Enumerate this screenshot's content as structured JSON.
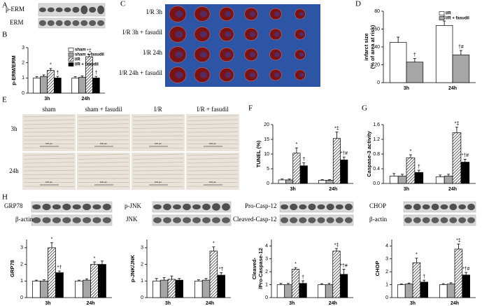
{
  "panel_labels": [
    "A",
    "B",
    "C",
    "D",
    "E",
    "F",
    "G",
    "H"
  ],
  "blot_A": [
    "p-ERM",
    "ERM"
  ],
  "panel_C": [
    "I/R 3h",
    "I/R 3h + fasudil",
    "I/R 24h",
    "I/R 24h + fasudil"
  ],
  "panel_E": {
    "columns": [
      "sham",
      "sham + fasudil",
      "I/R",
      "I/R + fasudil"
    ],
    "rows": [
      "3h",
      "24h"
    ],
    "scale_bar": "100 μm"
  },
  "blot_H": [
    [
      "GRP78",
      "β-actin"
    ],
    [
      "p-JNK",
      "JNK"
    ],
    [
      "Pro-Casp-12",
      "Cleaved-Casp-12"
    ],
    [
      "CHOP",
      "β-actin"
    ]
  ],
  "chart_data": [
    {
      "type": "bar",
      "ylabel": [
        "p-ERM/ERM"
      ],
      "categories": [
        "3h",
        "24h"
      ],
      "ylim": [
        0,
        3
      ],
      "yticks": [
        0,
        1,
        2,
        3
      ],
      "legend": "upper right",
      "series": [
        {
          "name": "sham",
          "color": "#ffffff",
          "values": [
            1,
            1
          ],
          "errors": [
            0.08,
            0.08
          ],
          "significance": [
            null,
            null
          ]
        },
        {
          "name": "sham + fasudil",
          "color": "#a6a6a6",
          "values": [
            1.1,
            1.05
          ],
          "errors": [
            0.1,
            0.08
          ],
          "significance": [
            null,
            null
          ]
        },
        {
          "name": "I/R",
          "color": "#ffffff",
          "pattern": "hatch",
          "values": [
            1.5,
            2.4
          ],
          "errors": [
            0.12,
            0.15
          ],
          "significance": [
            "*",
            "*‡"
          ]
        },
        {
          "name": "I/R + fasudil",
          "color": "#000000",
          "values": [
            1,
            1
          ],
          "errors": [
            0.1,
            0.1
          ],
          "significance": [
            "†",
            "†"
          ]
        }
      ]
    },
    {
      "type": "bar",
      "ylabel": [
        "infarct size",
        "(% of area at risk)"
      ],
      "categories": [
        "3h",
        "24h"
      ],
      "ylim": [
        0,
        80
      ],
      "yticks": [
        0,
        20,
        40,
        60,
        80
      ],
      "legend": "upper right",
      "series": [
        {
          "name": "I/R",
          "color": "#ffffff",
          "values": [
            45,
            64
          ],
          "errors": [
            6,
            5
          ],
          "significance": [
            null,
            "‡"
          ]
        },
        {
          "name": "I/R + fasudil",
          "color": "#a6a6a6",
          "values": [
            23,
            31
          ],
          "errors": [
            4,
            5
          ],
          "significance": [
            "†",
            "†#"
          ]
        }
      ]
    },
    {
      "type": "bar",
      "ylabel": [
        "TUNEL (%)"
      ],
      "categories": [
        "3h",
        "24h"
      ],
      "ylim": [
        0,
        20
      ],
      "yticks": [
        0,
        5,
        10,
        15,
        20
      ],
      "series": [
        {
          "color": "#ffffff",
          "values": [
            1.2,
            1.1
          ],
          "errors": [
            0.3,
            0.2
          ],
          "significance": [
            null,
            null
          ]
        },
        {
          "color": "#a6a6a6",
          "values": [
            1.2,
            1.1
          ],
          "errors": [
            0.3,
            0.2
          ],
          "significance": [
            null,
            null
          ]
        },
        {
          "color": "#ffffff",
          "pattern": "hatch",
          "values": [
            10.3,
            15.3
          ],
          "errors": [
            1.8,
            2.2
          ],
          "significance": [
            "*",
            "*‡"
          ]
        },
        {
          "color": "#000000",
          "values": [
            6,
            8
          ],
          "errors": [
            1,
            1
          ],
          "significance": [
            "†",
            "*†#"
          ]
        }
      ]
    },
    {
      "type": "bar",
      "ylabel": [
        "Caspase-3 activity"
      ],
      "categories": [
        "3h",
        "24h"
      ],
      "ylim": [
        0,
        1.6
      ],
      "yticks": [
        {
          "value": 0,
          "label": "0.0"
        },
        0.4,
        0.8,
        1.2,
        1.6
      ],
      "series": [
        {
          "color": "#ffffff",
          "values": [
            0.2,
            0.18
          ],
          "errors": [
            0.07,
            0.05
          ],
          "significance": [
            null,
            null
          ]
        },
        {
          "color": "#a6a6a6",
          "values": [
            0.2,
            0.2
          ],
          "errors": [
            0.05,
            0.05
          ],
          "significance": [
            null,
            null
          ]
        },
        {
          "color": "#ffffff",
          "pattern": "hatch",
          "values": [
            0.7,
            1.38
          ],
          "errors": [
            0.08,
            0.15
          ],
          "significance": [
            "*",
            "*‡"
          ]
        },
        {
          "color": "#000000",
          "values": [
            0.3,
            0.58
          ],
          "errors": [
            0.06,
            0.08
          ],
          "significance": [
            "†",
            "*†#"
          ]
        }
      ]
    },
    {
      "type": "bar",
      "ylabel": [
        "GRP78"
      ],
      "categories": [
        "3h",
        "24h"
      ],
      "ylim": [
        0,
        3.5
      ],
      "yticks": [
        0,
        1,
        2,
        3
      ],
      "series": [
        {
          "color": "#ffffff",
          "values": [
            1,
            1
          ],
          "errors": [
            0.05,
            0.05
          ],
          "significance": [
            null,
            null
          ]
        },
        {
          "color": "#a6a6a6",
          "values": [
            1,
            1.05
          ],
          "errors": [
            0.07,
            0.08
          ],
          "significance": [
            null,
            null
          ]
        },
        {
          "color": "#ffffff",
          "pattern": "hatch",
          "values": [
            3,
            2
          ],
          "errors": [
            0.3,
            0.15
          ],
          "significance": [
            "*",
            "*"
          ]
        },
        {
          "color": "#000000",
          "values": [
            1.5,
            2
          ],
          "errors": [
            0.1,
            0.2
          ],
          "significance": [
            "*†",
            null
          ]
        }
      ]
    },
    {
      "type": "bar",
      "ylabel": [
        "p-JNK/JNK"
      ],
      "categories": [
        "3h",
        "24h"
      ],
      "ylim": [
        0,
        3.5
      ],
      "yticks": [
        0,
        1,
        2,
        3
      ],
      "series": [
        {
          "color": "#ffffff",
          "values": [
            1,
            1
          ],
          "errors": [
            0.15,
            0.07
          ],
          "significance": [
            null,
            null
          ]
        },
        {
          "color": "#a6a6a6",
          "values": [
            1.05,
            1.05
          ],
          "errors": [
            0.15,
            0.1
          ],
          "significance": [
            null,
            null
          ]
        },
        {
          "color": "#ffffff",
          "pattern": "hatch",
          "values": [
            1.1,
            2.8
          ],
          "errors": [
            0.2,
            0.25
          ],
          "significance": [
            null,
            "*"
          ]
        },
        {
          "color": "#000000",
          "values": [
            1.05,
            1.35
          ],
          "errors": [
            0.1,
            0.15
          ],
          "significance": [
            null,
            "*†"
          ]
        }
      ]
    },
    {
      "type": "bar",
      "ylabel": [
        "Cleaved-",
        "/Pro-Caspase-12"
      ],
      "categories": [
        "3h",
        "24h"
      ],
      "ylim": [
        0,
        4.5
      ],
      "yticks": [
        0,
        1,
        2,
        3,
        4
      ],
      "series": [
        {
          "color": "#ffffff",
          "values": [
            1,
            1
          ],
          "errors": [
            0.1,
            0.08
          ],
          "significance": [
            null,
            null
          ]
        },
        {
          "color": "#a6a6a6",
          "values": [
            1,
            1
          ],
          "errors": [
            0.1,
            0.1
          ],
          "significance": [
            null,
            null
          ]
        },
        {
          "color": "#ffffff",
          "pattern": "hatch",
          "values": [
            2.2,
            3.6
          ],
          "errors": [
            0.12,
            0.2
          ],
          "significance": [
            "*",
            "*‡"
          ]
        },
        {
          "color": "#000000",
          "values": [
            1.1,
            1.8
          ],
          "errors": [
            0.2,
            0.4
          ],
          "significance": [
            "†",
            "*†#"
          ]
        }
      ]
    },
    {
      "type": "bar",
      "ylabel": [
        "CHOP"
      ],
      "categories": [
        "3h",
        "24h"
      ],
      "ylim": [
        0,
        4.5
      ],
      "yticks": [
        0,
        1,
        2,
        3,
        4
      ],
      "series": [
        {
          "color": "#ffffff",
          "values": [
            1,
            1
          ],
          "errors": [
            0.05,
            0.08
          ],
          "significance": [
            null,
            null
          ]
        },
        {
          "color": "#a6a6a6",
          "values": [
            1.05,
            1.05
          ],
          "errors": [
            0.08,
            0.1
          ],
          "significance": [
            null,
            null
          ]
        },
        {
          "color": "#ffffff",
          "pattern": "hatch",
          "values": [
            2.7,
            3.75
          ],
          "errors": [
            0.35,
            0.4
          ],
          "significance": [
            "*",
            "*‡"
          ]
        },
        {
          "color": "#000000",
          "values": [
            1.2,
            1.75
          ],
          "errors": [
            0.15,
            0.2
          ],
          "significance": [
            "†",
            "*†#"
          ]
        }
      ]
    }
  ]
}
